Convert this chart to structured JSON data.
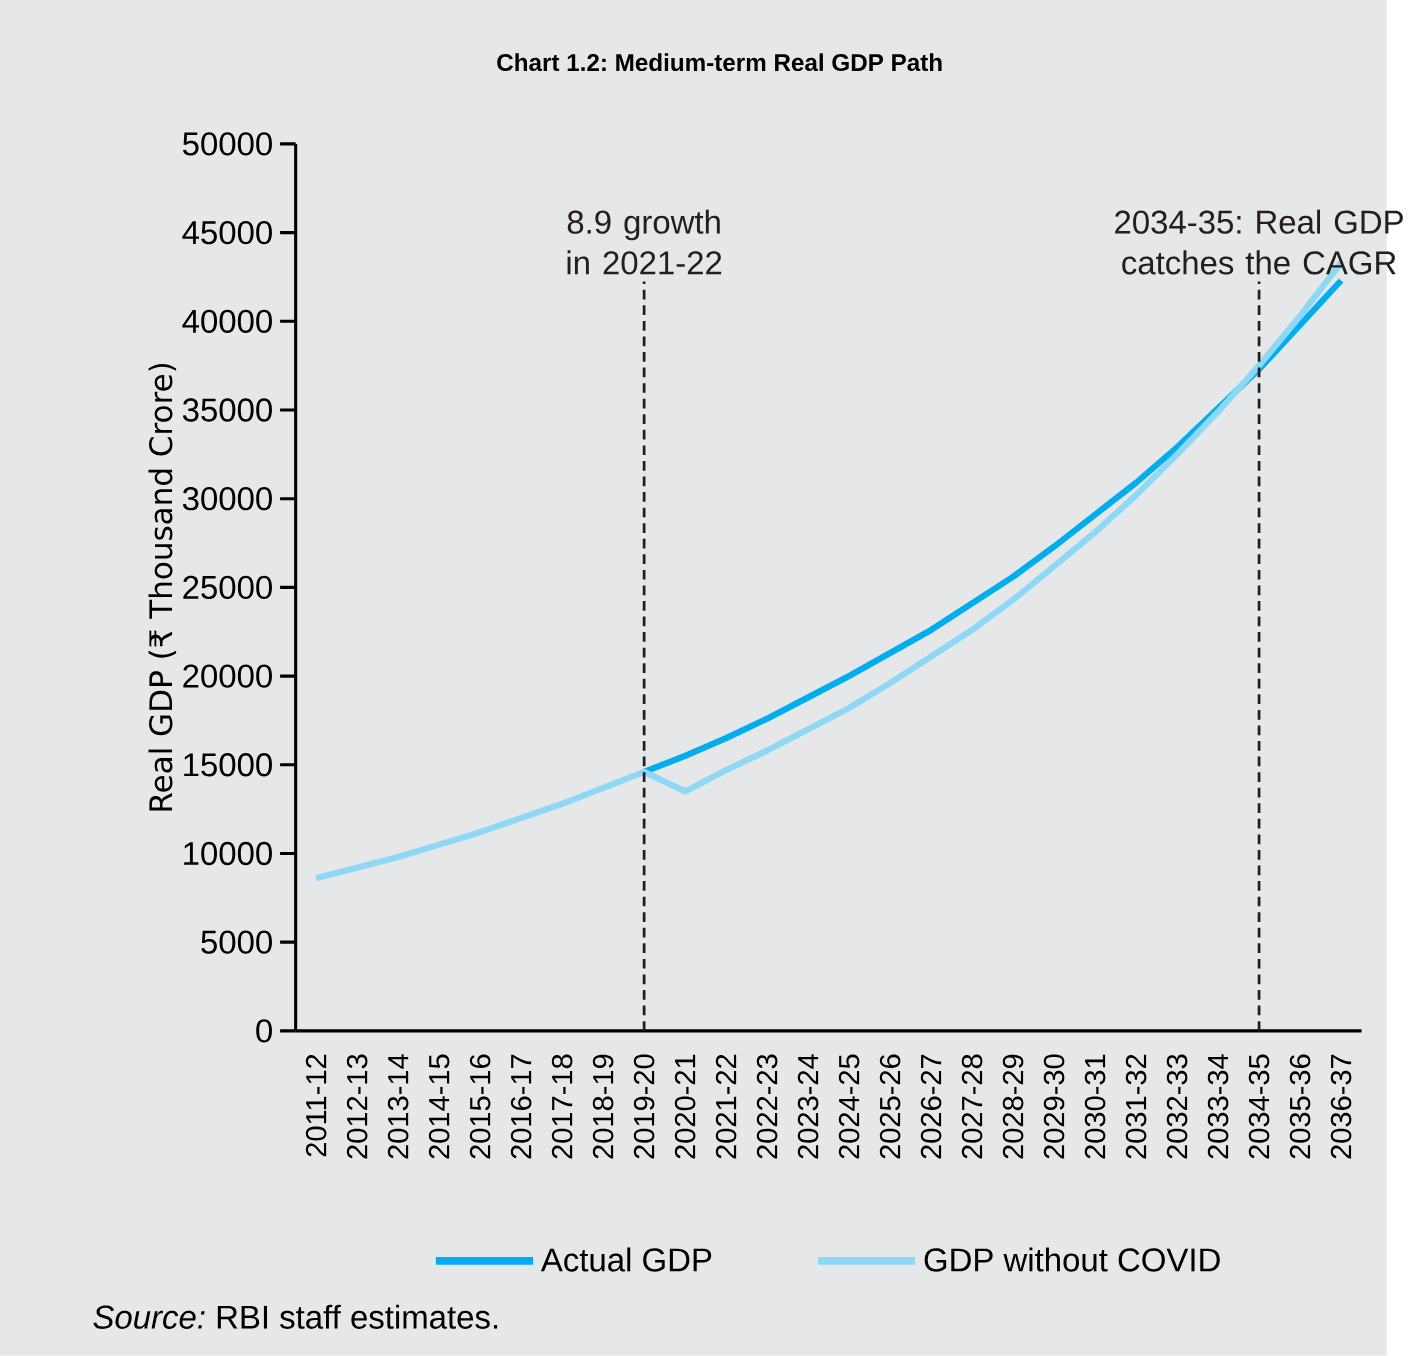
{
  "chart_data": {
    "type": "line",
    "title": "Chart 1.2: Medium-term Real GDP Path",
    "ylabel": "Real GDP (₹ Thousand Crore)",
    "categories": [
      "2011-12",
      "2012-13",
      "2013-14",
      "2014-15",
      "2015-16",
      "2016-17",
      "2017-18",
      "2018-19",
      "2019-20",
      "2020-21",
      "2021-22",
      "2022-23",
      "2023-24",
      "2024-25",
      "2025-26",
      "2026-27",
      "2027-28",
      "2028-29",
      "2029-30",
      "2030-31",
      "2031-32",
      "2032-33",
      "2033-34",
      "2034-35",
      "2035-36",
      "2036-37"
    ],
    "series": [
      {
        "name": "Actual GDP",
        "color": "#00aeef",
        "values": [
          null,
          null,
          null,
          null,
          null,
          null,
          null,
          null,
          14600,
          15500,
          16500,
          17600,
          18800,
          20000,
          21300,
          22600,
          24100,
          25600,
          27300,
          29100,
          30900,
          32900,
          35100,
          37300,
          39800,
          42300
        ]
      },
      {
        "name": "GDP without COVID",
        "color": "#8fd8f5",
        "values": [
          8600,
          9200,
          9800,
          10500,
          11200,
          12000,
          12800,
          13700,
          14600,
          13500,
          14700,
          15800,
          17000,
          18200,
          19600,
          21100,
          22600,
          24300,
          26200,
          28100,
          30200,
          32500,
          34900,
          37500,
          40300,
          43300
        ]
      }
    ],
    "ylim": [
      0,
      50000
    ],
    "yticks": [
      0,
      5000,
      10000,
      15000,
      20000,
      25000,
      30000,
      35000,
      40000,
      45000,
      50000
    ],
    "ref_lines": [
      {
        "axis": "x",
        "value": "2019-20",
        "label": "8.9 growth in 2021-22",
        "line_style": "dashed",
        "color": "#231f20"
      },
      {
        "axis": "x",
        "value": "2034-35",
        "label": "2034-35: Real GDP catches the CAGR",
        "line_style": "dashed",
        "color": "#231f20"
      }
    ],
    "annotations": [
      "*Source:* RBI staff estimates."
    ],
    "legend": "bottom",
    "grid": false,
    "marker": "none",
    "line_style": "solid"
  }
}
